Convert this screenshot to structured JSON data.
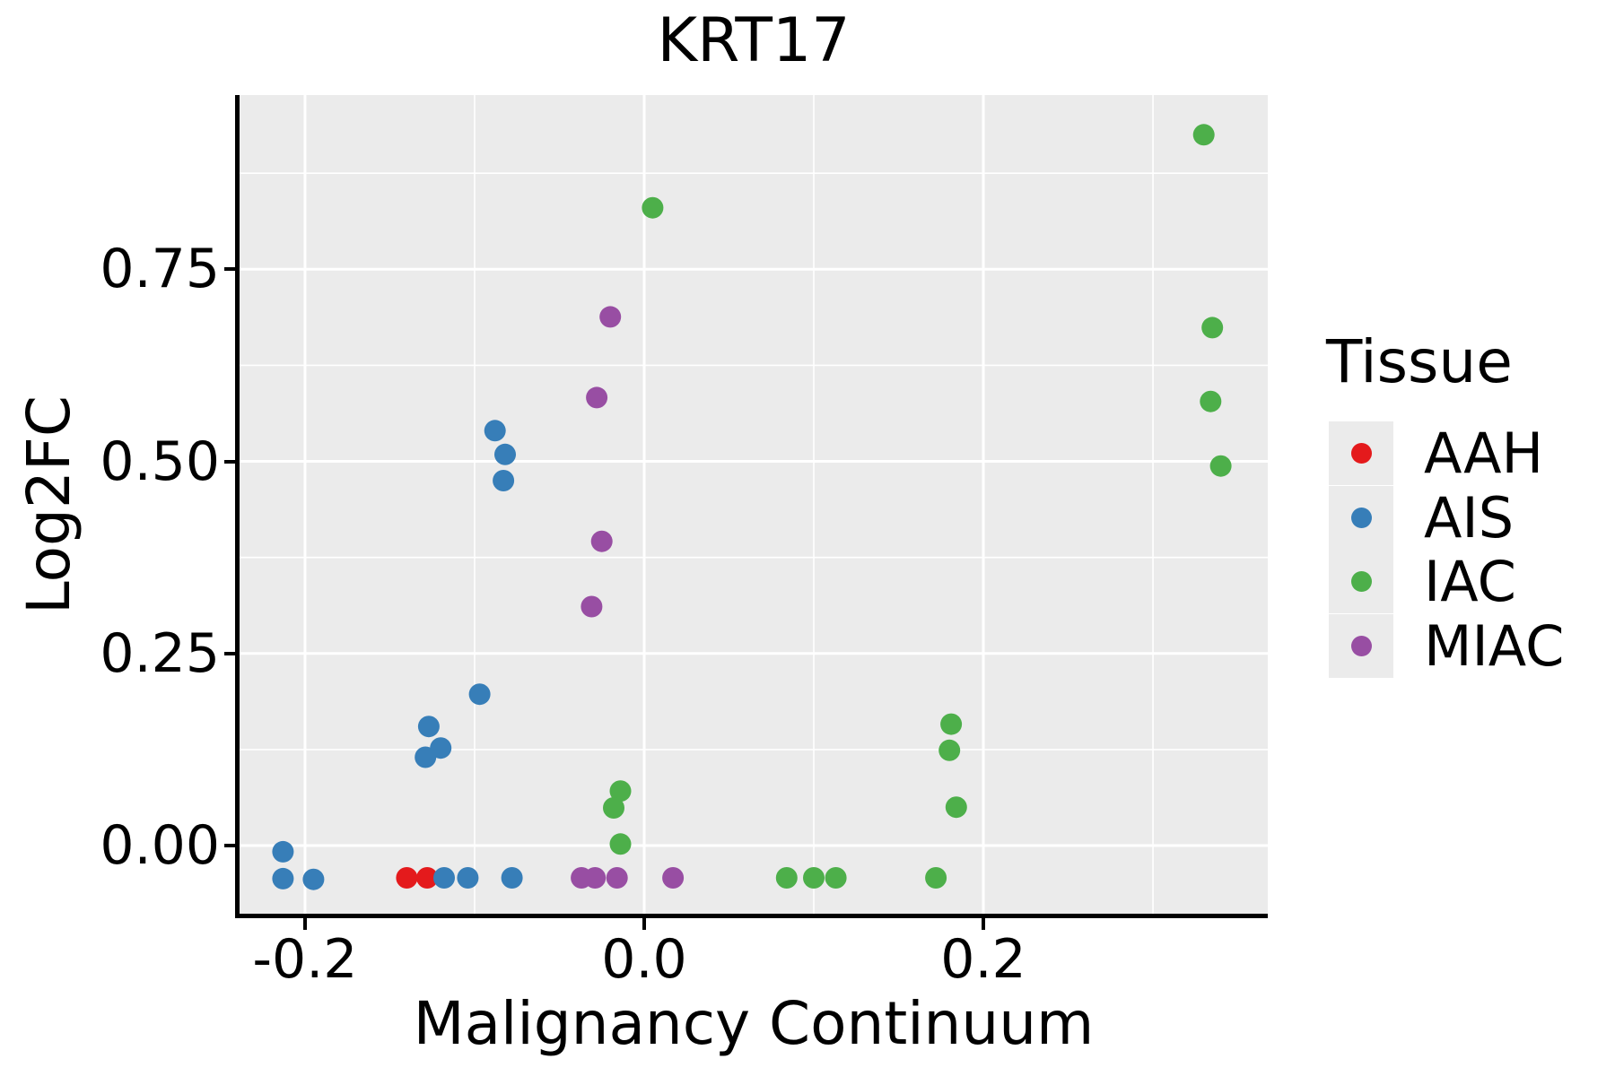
{
  "chart_data": {
    "type": "scatter",
    "title": "KRT17",
    "xlabel": "Malignancy Continuum",
    "ylabel": "Log2FC",
    "xlim": [
      -0.2386,
      0.3677
    ],
    "ylim": [
      -0.0898,
      0.9767
    ],
    "grid": true,
    "x_ticks": [
      {
        "v": -0.2,
        "label": "-0.2"
      },
      {
        "v": 0.0,
        "label": "0.0"
      },
      {
        "v": 0.2,
        "label": "0.2"
      }
    ],
    "x_minor_ticks": [
      -0.1,
      0.1,
      0.3
    ],
    "y_ticks": [
      {
        "v": 0.0,
        "label": "0.00"
      },
      {
        "v": 0.25,
        "label": "0.25"
      },
      {
        "v": 0.5,
        "label": "0.50"
      },
      {
        "v": 0.75,
        "label": "0.75"
      }
    ],
    "y_minor_ticks": [
      0.125,
      0.375,
      0.625,
      0.875
    ],
    "legend": {
      "title": "Tissue",
      "position": "right"
    },
    "colors": {
      "panel_bg": "#EBEBEB",
      "grid_major": "#FFFFFF",
      "grid_minor": "#FFFFFF",
      "axis": "#000000"
    },
    "point_radius_px": 12,
    "series": [
      {
        "name": "AAH",
        "color": "#E41A1C",
        "points": [
          [
            -0.14,
            -0.042
          ],
          [
            -0.128,
            -0.042
          ]
        ]
      },
      {
        "name": "AIS",
        "color": "#377EB8",
        "points": [
          [
            -0.213,
            -0.008
          ],
          [
            -0.213,
            -0.043
          ],
          [
            -0.195,
            -0.044
          ],
          [
            -0.118,
            -0.042
          ],
          [
            -0.104,
            -0.042
          ],
          [
            -0.078,
            -0.042
          ],
          [
            -0.129,
            0.115
          ],
          [
            -0.127,
            0.155
          ],
          [
            -0.12,
            0.127
          ],
          [
            -0.097,
            0.197
          ],
          [
            -0.088,
            0.54
          ],
          [
            -0.082,
            0.509
          ],
          [
            -0.083,
            0.475
          ]
        ]
      },
      {
        "name": "IAC",
        "color": "#4DAF4A",
        "points": [
          [
            0.005,
            0.83
          ],
          [
            -0.014,
            0.071
          ],
          [
            -0.018,
            0.049
          ],
          [
            -0.014,
            0.002
          ],
          [
            0.084,
            -0.042
          ],
          [
            0.1,
            -0.042
          ],
          [
            0.113,
            -0.042
          ],
          [
            0.172,
            -0.042
          ],
          [
            0.181,
            0.158
          ],
          [
            0.18,
            0.124
          ],
          [
            0.184,
            0.05
          ],
          [
            0.33,
            0.925
          ],
          [
            0.335,
            0.674
          ],
          [
            0.334,
            0.578
          ],
          [
            0.34,
            0.494
          ]
        ]
      },
      {
        "name": "MIAC",
        "color": "#984EA3",
        "points": [
          [
            -0.02,
            0.688
          ],
          [
            -0.028,
            0.583
          ],
          [
            -0.025,
            0.396
          ],
          [
            -0.031,
            0.311
          ],
          [
            -0.037,
            -0.042
          ],
          [
            -0.029,
            -0.042
          ],
          [
            -0.016,
            -0.042
          ],
          [
            0.017,
            -0.042
          ]
        ]
      }
    ]
  }
}
